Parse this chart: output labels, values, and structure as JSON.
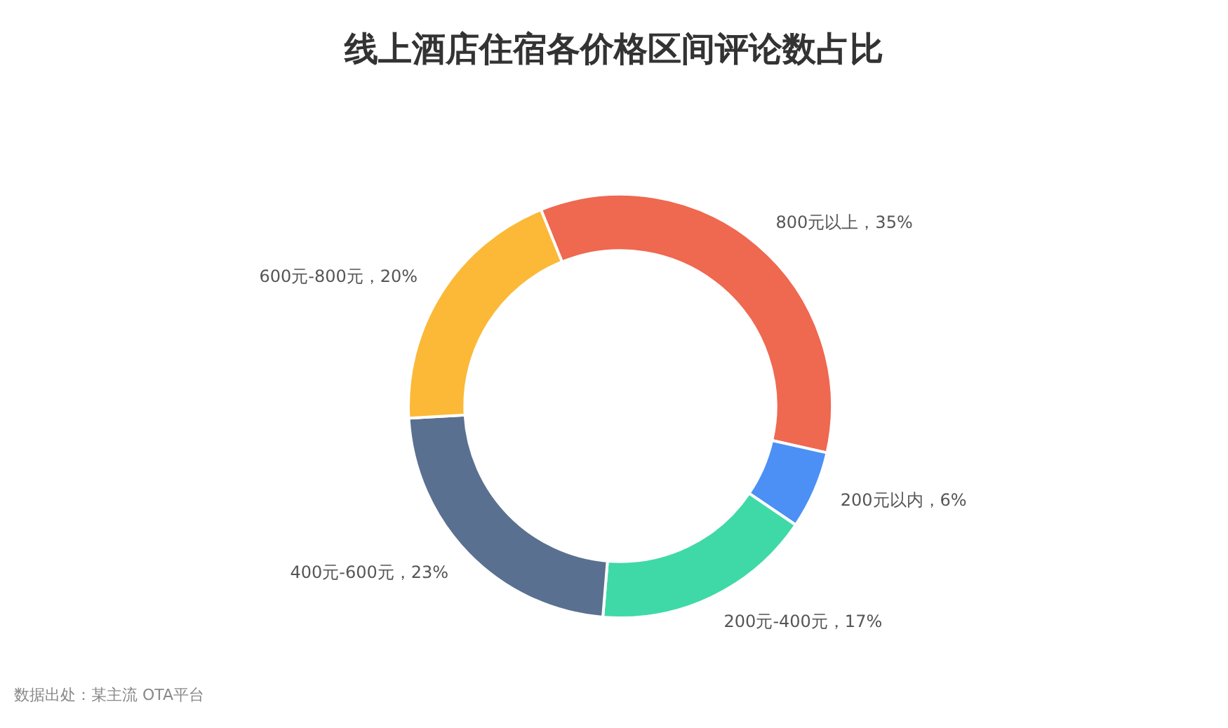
{
  "chart_data": {
    "type": "donut",
    "title": "线上酒店住宿各价格区间评论数占比",
    "categories": [
      "800元以上",
      "200元以内",
      "200元-400元",
      "400元-600元",
      "600元-800元"
    ],
    "values": [
      35,
      6,
      17,
      23,
      20
    ],
    "colors": [
      "#ef6850",
      "#4c90f5",
      "#3fd9a8",
      "#5a7090",
      "#fbb937"
    ],
    "value_labels": [
      "35%",
      "6%",
      "17%",
      "23%",
      "20%"
    ],
    "annotations": [
      "数据出处：某主流 OTA平台"
    ]
  }
}
